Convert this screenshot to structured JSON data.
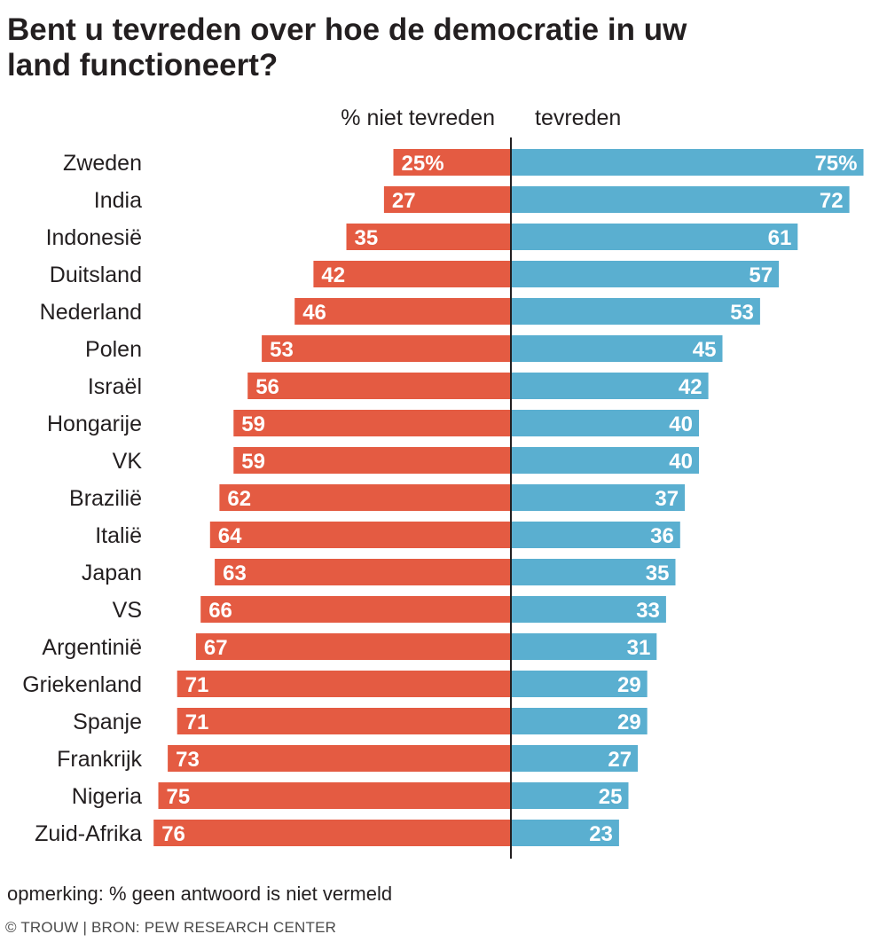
{
  "title_line1": "Bent u tevreden over hoe de democratie in uw",
  "title_line2": "land functioneert?",
  "colors": {
    "not_satisfied": "#e45b42",
    "satisfied": "#5aafd0",
    "axis": "#231f20",
    "label_text": "#ffffff"
  },
  "chart_data": {
    "type": "bar",
    "orientation": "horizontal-diverging",
    "column_headers": [
      "% niet tevreden",
      "tevreden"
    ],
    "categories": [
      "Zweden",
      "India",
      "Indonesië",
      "Duitsland",
      "Nederland",
      "Polen",
      "Israël",
      "Hongarije",
      "VK",
      "Brazilië",
      "Italië",
      "Japan",
      "VS",
      "Argentinië",
      "Griekenland",
      "Spanje",
      "Frankrijk",
      "Nigeria",
      "Zuid-Afrika"
    ],
    "series": [
      {
        "name": "% niet tevreden",
        "values": [
          25,
          27,
          35,
          42,
          46,
          53,
          56,
          59,
          59,
          62,
          64,
          63,
          66,
          67,
          71,
          71,
          73,
          75,
          76
        ],
        "labels": [
          "25%",
          "27",
          "35",
          "42",
          "46",
          "53",
          "56",
          "59",
          "59",
          "62",
          "64",
          "63",
          "66",
          "67",
          "71",
          "71",
          "73",
          "75",
          "76"
        ]
      },
      {
        "name": "tevreden",
        "values": [
          75,
          72,
          61,
          57,
          53,
          45,
          42,
          40,
          40,
          37,
          36,
          35,
          33,
          31,
          29,
          29,
          27,
          25,
          23
        ],
        "labels": [
          "75%",
          "72",
          "61",
          "57",
          "53",
          "45",
          "42",
          "40",
          "40",
          "37",
          "36",
          "35",
          "33",
          "31",
          "29",
          "29",
          "27",
          "25",
          "23"
        ]
      }
    ]
  },
  "note": "opmerking: % geen antwoord is niet vermeld",
  "credit": "© TROUW | BRON: PEW RESEARCH CENTER"
}
